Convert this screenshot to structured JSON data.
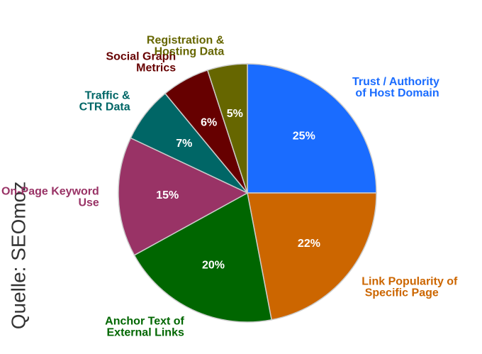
{
  "chart_data": {
    "type": "pie",
    "source": "Quelle: SEOmoz",
    "series": [
      {
        "name": "Trust / Authority of Host Domain",
        "color": "#1a6cff",
        "values": [
          25
        ]
      },
      {
        "name": "Link Popularity of Specific Page",
        "color": "#cc6600",
        "values": [
          22
        ]
      },
      {
        "name": "Anchor Text of External Links",
        "color": "#006600",
        "values": [
          20
        ]
      },
      {
        "name": "On-Page Keyword Use",
        "color": "#993366",
        "values": [
          15
        ]
      },
      {
        "name": "Traffic & CTR Data",
        "color": "#006666",
        "values": [
          7
        ]
      },
      {
        "name": "Social Graph Metrics",
        "color": "#660000",
        "values": [
          6
        ]
      },
      {
        "name": "Registration & Hosting Data",
        "color": "#666600",
        "values": [
          5
        ]
      }
    ],
    "value_labels": [
      "25%",
      "22%",
      "20%",
      "15%",
      "7%",
      "6%",
      "5%"
    ]
  }
}
